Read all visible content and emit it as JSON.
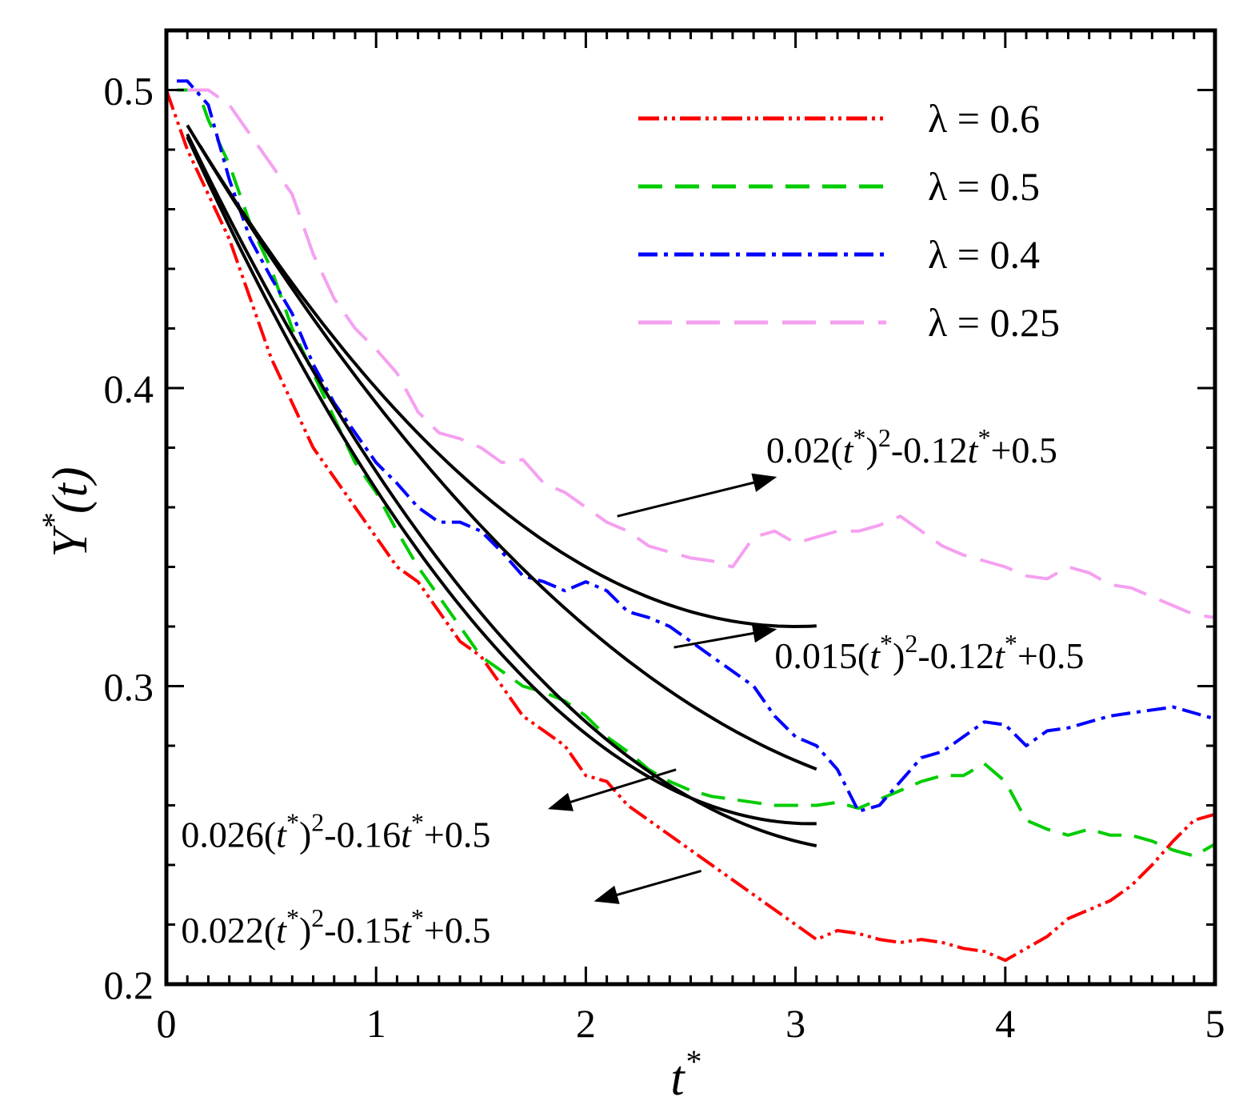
{
  "chart_data": {
    "type": "line",
    "title": "",
    "xlabel": {
      "base": "t",
      "sup": "*"
    },
    "ylabel": {
      "base": "Y",
      "sup": "*",
      "paren": "(t)"
    },
    "xlim": [
      0,
      5
    ],
    "ylim": [
      0.2,
      0.52
    ],
    "x_ticks": [
      0,
      1,
      2,
      3,
      4,
      5
    ],
    "x_tick_labels": [
      "0",
      "1",
      "2",
      "3",
      "4",
      "5"
    ],
    "y_ticks": [
      0.2,
      0.3,
      0.4,
      0.5
    ],
    "y_tick_labels": [
      "0.2",
      "0.3",
      "0.4",
      "0.5"
    ],
    "legend": {
      "position": "top-right",
      "entries": [
        "λ = 0.6",
        "λ = 0.5",
        "λ = 0.4",
        "λ = 0.25"
      ]
    },
    "series": [
      {
        "name": "λ = 0.6",
        "color": "#ff0000",
        "style": "dash-dot-dot",
        "x": [
          0,
          0.1,
          0.2,
          0.3,
          0.4,
          0.5,
          0.6,
          0.7,
          0.8,
          0.9,
          1.0,
          1.1,
          1.2,
          1.3,
          1.4,
          1.5,
          1.6,
          1.7,
          1.8,
          1.9,
          2.0,
          2.1,
          2.2,
          2.3,
          2.4,
          2.5,
          2.6,
          2.7,
          2.8,
          2.9,
          3.0,
          3.1,
          3.2,
          3.3,
          3.4,
          3.5,
          3.6,
          3.7,
          3.8,
          3.9,
          4.0,
          4.1,
          4.2,
          4.3,
          4.4,
          4.5,
          4.6,
          4.7,
          4.8,
          4.9,
          5.0
        ],
        "y": [
          0.5,
          0.48,
          0.465,
          0.45,
          0.43,
          0.41,
          0.395,
          0.38,
          0.37,
          0.36,
          0.35,
          0.34,
          0.335,
          0.325,
          0.315,
          0.31,
          0.3,
          0.29,
          0.285,
          0.28,
          0.27,
          0.268,
          0.26,
          0.255,
          0.25,
          0.245,
          0.24,
          0.235,
          0.23,
          0.225,
          0.22,
          0.215,
          0.218,
          0.217,
          0.215,
          0.214,
          0.215,
          0.214,
          0.212,
          0.211,
          0.208,
          0.212,
          0.216,
          0.222,
          0.225,
          0.228,
          0.233,
          0.24,
          0.248,
          0.255,
          0.257
        ]
      },
      {
        "name": "λ = 0.5",
        "color": "#00cc00",
        "style": "dash",
        "x": [
          0.05,
          0.15,
          0.2,
          0.3,
          0.4,
          0.5,
          0.6,
          0.7,
          0.8,
          0.9,
          1.0,
          1.1,
          1.2,
          1.3,
          1.4,
          1.5,
          1.6,
          1.7,
          1.8,
          1.9,
          2.0,
          2.1,
          2.2,
          2.3,
          2.4,
          2.5,
          2.6,
          2.7,
          2.8,
          2.9,
          3.0,
          3.1,
          3.2,
          3.3,
          3.4,
          3.5,
          3.6,
          3.7,
          3.8,
          3.9,
          4.0,
          4.1,
          4.2,
          4.3,
          4.4,
          4.5,
          4.6,
          4.7,
          4.8,
          4.9,
          5.0
        ],
        "y": [
          0.5,
          0.5,
          0.49,
          0.475,
          0.455,
          0.44,
          0.42,
          0.405,
          0.39,
          0.375,
          0.365,
          0.352,
          0.34,
          0.33,
          0.32,
          0.31,
          0.305,
          0.3,
          0.298,
          0.295,
          0.29,
          0.283,
          0.278,
          0.272,
          0.268,
          0.265,
          0.263,
          0.262,
          0.261,
          0.26,
          0.26,
          0.26,
          0.261,
          0.259,
          0.262,
          0.265,
          0.268,
          0.27,
          0.27,
          0.274,
          0.268,
          0.255,
          0.252,
          0.25,
          0.252,
          0.25,
          0.25,
          0.248,
          0.245,
          0.243,
          0.247
        ]
      },
      {
        "name": "λ = 0.4",
        "color": "#0000ff",
        "style": "dash-dot",
        "x": [
          0.05,
          0.1,
          0.2,
          0.3,
          0.4,
          0.5,
          0.6,
          0.7,
          0.8,
          0.9,
          1.0,
          1.1,
          1.2,
          1.3,
          1.4,
          1.5,
          1.6,
          1.7,
          1.8,
          1.9,
          2.0,
          2.1,
          2.2,
          2.3,
          2.4,
          2.5,
          2.6,
          2.7,
          2.8,
          2.9,
          3.0,
          3.1,
          3.2,
          3.3,
          3.4,
          3.5,
          3.6,
          3.7,
          3.8,
          3.9,
          4.0,
          4.1,
          4.2,
          4.3,
          4.4,
          4.5,
          4.6,
          4.7,
          4.8,
          4.9,
          5.0
        ],
        "y": [
          0.503,
          0.503,
          0.495,
          0.47,
          0.45,
          0.437,
          0.425,
          0.408,
          0.395,
          0.385,
          0.375,
          0.368,
          0.36,
          0.355,
          0.355,
          0.352,
          0.345,
          0.337,
          0.335,
          0.332,
          0.335,
          0.332,
          0.325,
          0.323,
          0.32,
          0.315,
          0.31,
          0.305,
          0.3,
          0.29,
          0.283,
          0.28,
          0.272,
          0.258,
          0.26,
          0.268,
          0.276,
          0.278,
          0.283,
          0.288,
          0.287,
          0.28,
          0.285,
          0.286,
          0.288,
          0.29,
          0.291,
          0.292,
          0.293,
          0.291,
          0.289
        ]
      },
      {
        "name": "λ = 0.25",
        "color": "#f5a0f0",
        "style": "long-dash",
        "x": [
          0.1,
          0.2,
          0.3,
          0.4,
          0.5,
          0.6,
          0.7,
          0.8,
          0.9,
          1.0,
          1.1,
          1.2,
          1.3,
          1.4,
          1.5,
          1.6,
          1.7,
          1.8,
          1.9,
          2.0,
          2.1,
          2.2,
          2.3,
          2.4,
          2.5,
          2.6,
          2.7,
          2.8,
          2.9,
          3.0,
          3.1,
          3.2,
          3.3,
          3.4,
          3.5,
          3.6,
          3.7,
          3.8,
          3.9,
          4.0,
          4.1,
          4.2,
          4.3,
          4.4,
          4.5,
          4.6,
          4.7,
          4.8,
          4.9,
          5.0
        ],
        "y": [
          0.5,
          0.5,
          0.495,
          0.485,
          0.475,
          0.465,
          0.445,
          0.43,
          0.42,
          0.413,
          0.405,
          0.392,
          0.385,
          0.383,
          0.38,
          0.375,
          0.376,
          0.368,
          0.365,
          0.36,
          0.355,
          0.352,
          0.347,
          0.345,
          0.343,
          0.342,
          0.34,
          0.35,
          0.352,
          0.348,
          0.35,
          0.352,
          0.352,
          0.354,
          0.357,
          0.352,
          0.347,
          0.344,
          0.342,
          0.34,
          0.337,
          0.336,
          0.34,
          0.338,
          0.334,
          0.333,
          0.33,
          0.327,
          0.324,
          0.323
        ]
      }
    ],
    "fits": [
      {
        "label": {
          "c": "0.02",
          "b": "-0.12",
          "k": "+0.5"
        },
        "a": 0.02,
        "b": -0.12,
        "c0": 0.5,
        "x_range": [
          0.16,
          3.1
        ],
        "arrow_from": [
          2.15,
          0.357
        ],
        "arrow_to": [
          2.9,
          0.37
        ],
        "label_at": [
          2.86,
          0.375
        ]
      },
      {
        "label": {
          "c": "0.015",
          "b": "-0.12",
          "k": "+0.5"
        },
        "a": 0.015,
        "b": -0.12,
        "c0": 0.5,
        "x_range": [
          0.1,
          3.1
        ],
        "arrow_from": [
          2.42,
          0.313
        ],
        "arrow_to": [
          2.9,
          0.319
        ],
        "label_at": [
          2.9,
          0.306
        ]
      },
      {
        "label": {
          "c": "0.026",
          "b": "-0.16",
          "k": "+0.5"
        },
        "a": 0.026,
        "b": -0.16,
        "c0": 0.5,
        "x_range": [
          0.1,
          3.1
        ],
        "arrow_from": [
          2.43,
          0.272
        ],
        "arrow_to": [
          1.83,
          0.259
        ],
        "label_at": [
          0.07,
          0.246
        ]
      },
      {
        "label": {
          "c": "0.022",
          "b": "-0.15",
          "k": "+0.5"
        },
        "a": 0.022,
        "b": -0.15,
        "c0": 0.5,
        "x_range": [
          0.1,
          3.1
        ],
        "arrow_from": [
          2.55,
          0.238
        ],
        "arrow_to": [
          2.05,
          0.228
        ],
        "label_at": [
          0.07,
          0.214
        ]
      }
    ]
  }
}
